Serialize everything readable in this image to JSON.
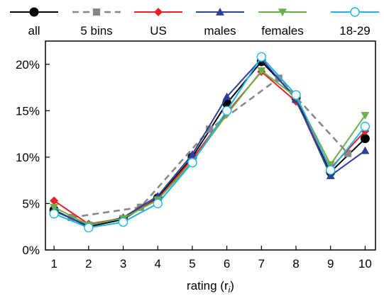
{
  "chart_data": {
    "type": "line",
    "title": "",
    "xlabel": "rating (r",
    "xlabel_sub": "i",
    "xlabel_close": ")",
    "ylabel": "",
    "x": [
      1,
      2,
      3,
      4,
      5,
      6,
      7,
      8,
      9,
      10
    ],
    "xlim": [
      0.75,
      10.3
    ],
    "ylim": [
      0,
      22.5
    ],
    "yticks": [
      0,
      5,
      10,
      15,
      20
    ],
    "ytick_labels": [
      "0%",
      "5%",
      "10%",
      "15%",
      "20%"
    ],
    "xtick_labels": [
      "1",
      "2",
      "3",
      "4",
      "5",
      "6",
      "7",
      "8",
      "9",
      "10"
    ],
    "grid": false,
    "legend_position": "top",
    "series": [
      {
        "name": "all",
        "color": "#000000",
        "marker": "circle-filled",
        "dash": false,
        "x": [
          1,
          2,
          3,
          4,
          5,
          6,
          7,
          8,
          9,
          10
        ],
        "values": [
          4.3,
          2.5,
          3.3,
          5.6,
          10.0,
          15.8,
          20.3,
          16.4,
          8.4,
          12.0
        ]
      },
      {
        "name": "5 bins",
        "color": "#888888",
        "marker": "square-filled",
        "dash": true,
        "x": [
          1.5,
          3.5,
          5.5,
          7.5,
          9.5
        ],
        "values": [
          3.5,
          4.6,
          13.0,
          18.5,
          10.4
        ]
      },
      {
        "name": "US",
        "color": "#e8202a",
        "marker": "diamond-filled",
        "dash": false,
        "x": [
          1,
          2,
          3,
          4,
          5,
          6,
          7,
          8,
          9,
          10
        ],
        "values": [
          5.3,
          2.8,
          3.4,
          5.5,
          9.8,
          14.8,
          19.2,
          16.0,
          8.8,
          12.8
        ]
      },
      {
        "name": "males",
        "color": "#2c3e9a",
        "marker": "triangle-up-filled",
        "dash": false,
        "x": [
          1,
          2,
          3,
          4,
          5,
          6,
          7,
          8,
          9,
          10
        ],
        "values": [
          4.2,
          2.6,
          3.5,
          5.8,
          10.3,
          16.5,
          20.6,
          16.2,
          8.0,
          10.7
        ]
      },
      {
        "name": "females",
        "color": "#6ab04a",
        "marker": "triangle-down-filled",
        "dash": false,
        "x": [
          1,
          2,
          3,
          4,
          5,
          6,
          7,
          8,
          9,
          10
        ],
        "values": [
          4.6,
          2.7,
          3.4,
          5.4,
          9.5,
          14.6,
          19.3,
          16.5,
          9.2,
          14.5
        ]
      },
      {
        "name": "18-29",
        "color": "#1fb4e6",
        "marker": "circle-open",
        "dash": false,
        "x": [
          1,
          2,
          3,
          4,
          5,
          6,
          7,
          8,
          9,
          10
        ],
        "values": [
          3.9,
          2.4,
          3.0,
          5.0,
          9.4,
          15.0,
          20.8,
          16.7,
          8.6,
          13.3
        ]
      }
    ]
  }
}
